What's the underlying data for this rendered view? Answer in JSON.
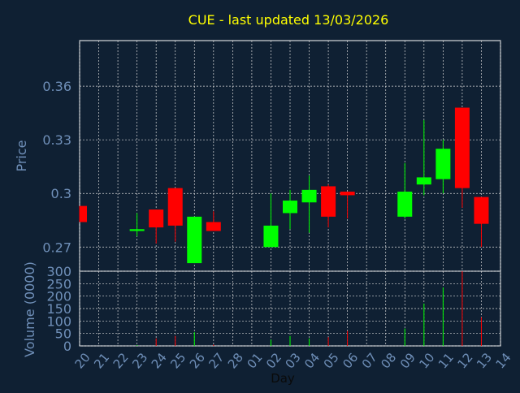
{
  "title": "CUE - last updated 13/03/2026",
  "colors": {
    "background": "#0f2033",
    "title": "#ffff00",
    "label": "#6f8fb8",
    "grid": "#d8d8d8",
    "axis": "#ffffff",
    "up": "#00ff00",
    "down": "#ff0000"
  },
  "chart_data": {
    "type": "candlestick",
    "title": "CUE - last updated 13/03/2026",
    "xlabel": "Day",
    "price_panel": {
      "ylabel": "Price",
      "yticks": [
        0.27,
        0.3,
        0.33,
        0.36
      ],
      "ytick_labels": [
        "0.27",
        "0.3",
        "0.33",
        "0.36"
      ],
      "ylim": [
        0.2565,
        0.3855
      ],
      "grid": true
    },
    "volume_panel": {
      "ylabel": "Volume (0000)",
      "yticks": [
        0,
        50,
        100,
        150,
        200,
        250,
        300
      ],
      "ytick_labels": [
        "0",
        "50",
        "100",
        "150",
        "200",
        "250",
        "300"
      ],
      "ylim": [
        0,
        300
      ],
      "grid": true
    },
    "x_tick_labels": [
      "20",
      "21",
      "22",
      "23",
      "24",
      "25",
      "26",
      "27",
      "28",
      "01",
      "02",
      "03",
      "04",
      "05",
      "06",
      "07",
      "08",
      "09",
      "10",
      "11",
      "12",
      "13",
      "14"
    ],
    "candles": [
      {
        "day": "20",
        "open": 0.293,
        "high": 0.293,
        "low": 0.284,
        "close": 0.284,
        "volume": 0
      },
      {
        "day": "23",
        "open": 0.279,
        "high": 0.289,
        "low": 0.276,
        "close": 0.28,
        "volume": 3
      },
      {
        "day": "24",
        "open": 0.291,
        "high": 0.291,
        "low": 0.272,
        "close": 0.281,
        "volume": 30
      },
      {
        "day": "25",
        "open": 0.303,
        "high": 0.303,
        "low": 0.273,
        "close": 0.282,
        "volume": 40
      },
      {
        "day": "26",
        "open": 0.261,
        "high": 0.287,
        "low": 0.261,
        "close": 0.287,
        "volume": 55
      },
      {
        "day": "27",
        "open": 0.284,
        "high": 0.29,
        "low": 0.279,
        "close": 0.279,
        "volume": 5
      },
      {
        "day": "02",
        "open": 0.27,
        "high": 0.3,
        "low": 0.27,
        "close": 0.282,
        "volume": 25
      },
      {
        "day": "03",
        "open": 0.289,
        "high": 0.302,
        "low": 0.28,
        "close": 0.296,
        "volume": 40
      },
      {
        "day": "04",
        "open": 0.295,
        "high": 0.31,
        "low": 0.278,
        "close": 0.302,
        "volume": 30
      },
      {
        "day": "05",
        "open": 0.304,
        "high": 0.305,
        "low": 0.281,
        "close": 0.287,
        "volume": 35
      },
      {
        "day": "06",
        "open": 0.301,
        "high": 0.301,
        "low": 0.286,
        "close": 0.299,
        "volume": 60
      },
      {
        "day": "09",
        "open": 0.287,
        "high": 0.317,
        "low": 0.286,
        "close": 0.301,
        "volume": 70
      },
      {
        "day": "10",
        "open": 0.305,
        "high": 0.341,
        "low": 0.299,
        "close": 0.309,
        "volume": 170
      },
      {
        "day": "11",
        "open": 0.308,
        "high": 0.33,
        "low": 0.3,
        "close": 0.325,
        "volume": 235
      },
      {
        "day": "12",
        "open": 0.348,
        "high": 0.348,
        "low": 0.292,
        "close": 0.303,
        "volume": 300
      },
      {
        "day": "13",
        "open": 0.298,
        "high": 0.298,
        "low": 0.27,
        "close": 0.283,
        "volume": 115
      }
    ]
  }
}
